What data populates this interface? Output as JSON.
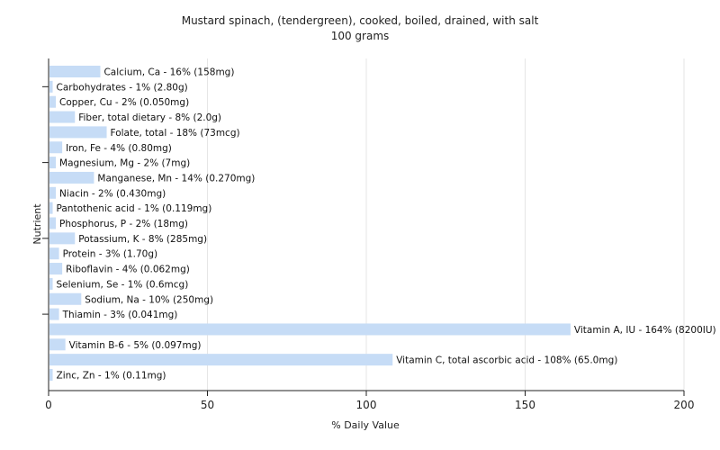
{
  "chart_data": {
    "type": "bar",
    "orientation": "horizontal",
    "title": "Mustard spinach, (tendergreen), cooked, boiled, drained, with salt",
    "subtitle": "100 grams",
    "xlabel": "% Daily Value",
    "ylabel": "Nutrient",
    "xlim": [
      0,
      200
    ],
    "xticks": [
      0,
      50,
      100,
      150,
      200
    ],
    "grid": true,
    "bar_color": "#c6dcf6",
    "categories": [
      "Calcium, Ca",
      "Carbohydrates",
      "Copper, Cu",
      "Fiber, total dietary",
      "Folate, total",
      "Iron, Fe",
      "Magnesium, Mg",
      "Manganese, Mn",
      "Niacin",
      "Pantothenic acid",
      "Phosphorus, P",
      "Potassium, K",
      "Protein",
      "Riboflavin",
      "Selenium, Se",
      "Sodium, Na",
      "Thiamin",
      "Vitamin A, IU",
      "Vitamin B-6",
      "Vitamin C, total ascorbic acid",
      "Zinc, Zn"
    ],
    "values": [
      16,
      1,
      2,
      8,
      18,
      4,
      2,
      14,
      2,
      1,
      2,
      8,
      3,
      4,
      1,
      10,
      3,
      164,
      5,
      108,
      1
    ],
    "bar_labels": [
      "Calcium, Ca - 16% (158mg)",
      "Carbohydrates - 1% (2.80g)",
      "Copper, Cu - 2% (0.050mg)",
      "Fiber, total dietary - 8% (2.0g)",
      "Folate, total - 18% (73mcg)",
      "Iron, Fe - 4% (0.80mg)",
      "Magnesium, Mg - 2% (7mg)",
      "Manganese, Mn - 14% (0.270mg)",
      "Niacin - 2% (0.430mg)",
      "Pantothenic acid - 1% (0.119mg)",
      "Phosphorus, P - 2% (18mg)",
      "Potassium, K - 8% (285mg)",
      "Protein - 3% (1.70g)",
      "Riboflavin - 4% (0.062mg)",
      "Selenium, Se - 1% (0.6mcg)",
      "Sodium, Na - 10% (250mg)",
      "Thiamin - 3% (0.041mg)",
      "Vitamin A, IU - 164% (8200IU)",
      "Vitamin B-6 - 5% (0.097mg)",
      "Vitamin C, total ascorbic acid - 108% (65.0mg)",
      "Zinc, Zn - 1% (0.11mg)"
    ]
  }
}
